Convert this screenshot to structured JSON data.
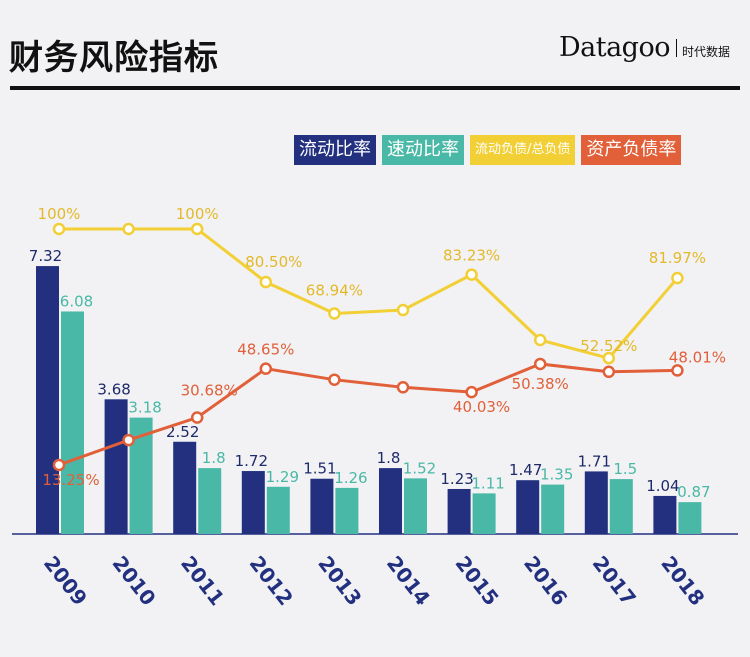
{
  "header": {
    "title": "财务风险指标",
    "brand_name": "Datagoo",
    "brand_cn": "时代数据"
  },
  "colors": {
    "current_ratio": "#22307f",
    "quick_ratio": "#4ab8a6",
    "current_liab_ratio": "#f2cf35",
    "asset_liab_ratio": "#e1603a",
    "axis": "#22307f"
  },
  "chart_data": {
    "type": "bar+line",
    "title": "财务风险指标",
    "categories": [
      "2009",
      "2010",
      "2011",
      "2012",
      "2013",
      "2014",
      "2015",
      "2016",
      "2017",
      "2018"
    ],
    "legend_position": "top-right",
    "grid": false,
    "series": [
      {
        "name": "流动比率",
        "type": "bar",
        "color_key": "current_ratio",
        "values": [
          7.32,
          3.68,
          2.52,
          1.72,
          1.51,
          1.8,
          1.23,
          1.47,
          1.71,
          1.04
        ],
        "labels": [
          "7.32",
          "3.68",
          "2.52",
          "1.72",
          "1.51",
          "1.8",
          "1.23",
          "1.47",
          "1.71",
          "1.04"
        ]
      },
      {
        "name": "速动比率",
        "type": "bar",
        "color_key": "quick_ratio",
        "values": [
          6.08,
          3.18,
          1.8,
          1.29,
          1.26,
          1.52,
          1.11,
          1.35,
          1.5,
          0.87
        ],
        "labels": [
          "6.08",
          "3.18",
          "1.8",
          "1.29",
          "1.26",
          "1.52",
          "1.11",
          "1.35",
          "1.5",
          "0.87"
        ]
      },
      {
        "name": "流动负债/总负债",
        "type": "line",
        "color_key": "current_liab_ratio",
        "values": [
          100,
          100,
          100,
          80.5,
          68.94,
          70.2,
          83.23,
          59.2,
          52.52,
          81.97
        ],
        "labels": [
          "100%",
          "",
          "100%",
          "80.50%",
          "68.94%",
          "",
          "83.23%",
          "",
          "52.52%",
          "81.97%"
        ]
      },
      {
        "name": "资产负债率",
        "type": "line",
        "color_key": "asset_liab_ratio",
        "values": [
          13.25,
          22.4,
          30.68,
          48.65,
          44.6,
          41.8,
          40.03,
          50.38,
          47.5,
          48.01
        ],
        "labels": [
          "13.25%",
          "",
          "30.68%",
          "48.65%",
          "",
          "",
          "40.03%",
          "50.38%",
          "",
          "48.01%"
        ]
      }
    ],
    "bar_ylim": [
      0,
      7.32
    ],
    "line_ylim": [
      0,
      100
    ],
    "xlabel": "",
    "ylabel": ""
  }
}
